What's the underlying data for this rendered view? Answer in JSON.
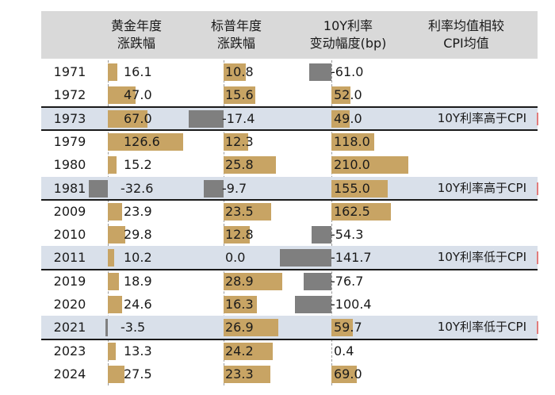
{
  "headers": [
    [
      "黄金年度",
      "涨跌幅"
    ],
    [
      "标普年度",
      "涨跌幅"
    ],
    [
      "10Y利率",
      "变动幅度(bp)"
    ],
    [
      "利率均值相较",
      "CPI均值"
    ]
  ],
  "chart_data": {
    "type": "table",
    "columns": [
      "黄金年度涨跌幅",
      "标普年度涨跌幅",
      "10Y利率变动幅度(bp)",
      "利率均值相较CPI均值"
    ],
    "rows": [
      {
        "year": "1971",
        "gold": "16.1",
        "spx": "10.8",
        "rate": "-61.0",
        "note": "",
        "highlight": false
      },
      {
        "year": "1972",
        "gold": "47.0",
        "spx": "15.6",
        "rate": "52.0",
        "note": "",
        "highlight": false
      },
      {
        "year": "1973",
        "gold": "67.0",
        "spx": "-17.4",
        "rate": "49.0",
        "note": "10Y利率高于CPI",
        "highlight": true
      },
      {
        "year": "1979",
        "gold": "126.6",
        "spx": "12.3",
        "rate": "118.0",
        "note": "",
        "highlight": false
      },
      {
        "year": "1980",
        "gold": "15.2",
        "spx": "25.8",
        "rate": "210.0",
        "note": "",
        "highlight": false
      },
      {
        "year": "1981",
        "gold": "-32.6",
        "spx": "-9.7",
        "rate": "155.0",
        "note": "10Y利率高于CPI",
        "highlight": true
      },
      {
        "year": "2009",
        "gold": "23.9",
        "spx": "23.5",
        "rate": "162.5",
        "note": "",
        "highlight": false
      },
      {
        "year": "2010",
        "gold": "29.8",
        "spx": "12.8",
        "rate": "-54.3",
        "note": "",
        "highlight": false
      },
      {
        "year": "2011",
        "gold": "10.2",
        "spx": "0.0",
        "rate": "-141.7",
        "note": "10Y利率低于CPI",
        "highlight": true
      },
      {
        "year": "2019",
        "gold": "18.9",
        "spx": "28.9",
        "rate": "-76.7",
        "note": "",
        "highlight": false
      },
      {
        "year": "2020",
        "gold": "24.6",
        "spx": "16.3",
        "rate": "-100.4",
        "note": "",
        "highlight": false
      },
      {
        "year": "2021",
        "gold": "-3.5",
        "spx": "26.9",
        "rate": "59.7",
        "note": "10Y利率低于CPI",
        "highlight": true
      },
      {
        "year": "2023",
        "gold": "13.3",
        "spx": "24.2",
        "rate": "0.4",
        "note": "",
        "highlight": false
      },
      {
        "year": "2024",
        "gold": "27.5",
        "spx": "23.3",
        "rate": "69.0",
        "note": "",
        "highlight": false
      }
    ]
  },
  "colors": {
    "positive_bar": "#c8a464",
    "negative_bar": "#7f7f7f",
    "header_band": "#d9d9d9",
    "highlight_band": "#d9e0ea"
  }
}
